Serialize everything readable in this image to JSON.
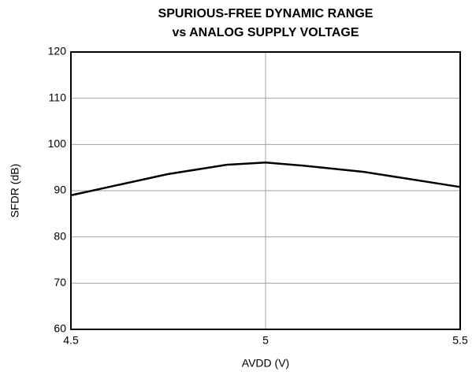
{
  "chart_data": {
    "type": "line",
    "title": [
      "SPURIOUS-FREE DYNAMIC RANGE",
      "vs ANALOG SUPPLY VOLTAGE"
    ],
    "xlabel": "AVDD (V)",
    "ylabel": "SFDR (dB)",
    "x": [
      4.5,
      4.75,
      4.9,
      5.0,
      5.1,
      5.25,
      5.5
    ],
    "series": [
      {
        "color": "#000000",
        "values": [
          89.0,
          93.6,
          95.6,
          96.1,
          95.4,
          94.1,
          90.8
        ]
      }
    ],
    "xlim": [
      4.5,
      5.5
    ],
    "xticks": [
      4.5,
      5,
      5.5
    ],
    "ylim": [
      60,
      120
    ],
    "yticks": [
      60,
      70,
      80,
      90,
      100,
      110,
      120
    ],
    "grid": true
  }
}
